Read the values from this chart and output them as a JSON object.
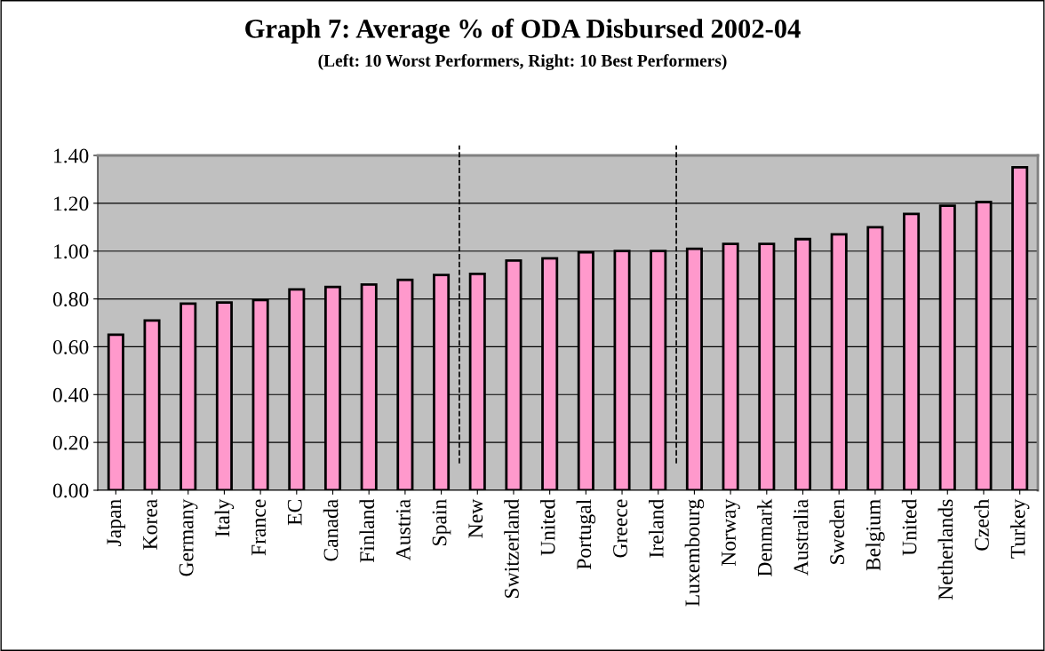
{
  "chart_data": {
    "type": "bar",
    "title": "Graph 7: Average % of ODA Disbursed 2002-04",
    "subtitle": "(Left: 10 Worst Performers, Right: 10 Best Performers)",
    "categories": [
      "Japan",
      "Korea",
      "Germany",
      "Italy",
      "France",
      "EC",
      "Canada",
      "Finland",
      "Austria",
      "Spain",
      "New",
      "Switzerland",
      "United",
      "Portugal",
      "Greece",
      "Ireland",
      "Luxembourg",
      "Norway",
      "Denmark",
      "Australia",
      "Sweden",
      "Belgium",
      "United",
      "Netherlands",
      "Czech",
      "Turkey"
    ],
    "values": [
      0.65,
      0.71,
      0.78,
      0.785,
      0.795,
      0.84,
      0.85,
      0.86,
      0.88,
      0.9,
      0.905,
      0.96,
      0.97,
      0.995,
      1.0,
      1.0,
      1.01,
      1.03,
      1.03,
      1.05,
      1.07,
      1.1,
      1.155,
      1.19,
      1.205,
      1.35
    ],
    "color": "#ff99cc",
    "ylim": [
      0,
      1.4
    ],
    "yticks": [
      {
        "value": 0,
        "label": "0.00"
      },
      {
        "value": 0.2,
        "label": "0.20"
      },
      {
        "value": 0.4,
        "label": "0.40"
      },
      {
        "value": 0.6,
        "label": "0.60"
      },
      {
        "value": 0.8,
        "label": "0.80"
      },
      {
        "value": 1.0,
        "label": "1.00"
      },
      {
        "value": 1.2,
        "label": "1.20"
      },
      {
        "value": 1.4,
        "label": "1.40"
      }
    ],
    "grid": "y"
  }
}
